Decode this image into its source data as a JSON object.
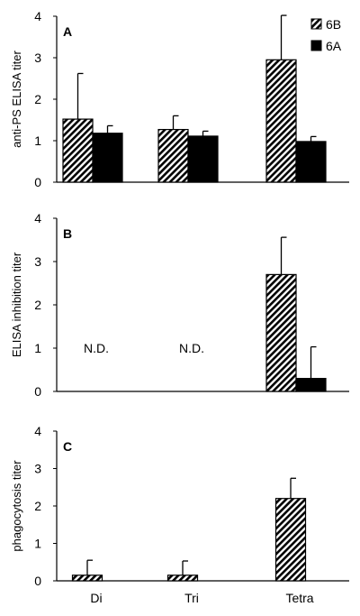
{
  "chart_data": [
    {
      "type": "bar",
      "panel": "A",
      "ylabel": "anti-PS ELISA titer",
      "ylim": [
        0,
        4
      ],
      "yticks": [
        "0",
        "1",
        "2",
        "3",
        "4"
      ],
      "categories": [
        "Di",
        "Tri",
        "Tetra"
      ],
      "series": [
        {
          "name": "6B",
          "values": [
            1.52,
            1.27,
            2.95
          ],
          "errors": [
            1.1,
            0.33,
            1.07
          ]
        },
        {
          "name": "6A",
          "values": [
            1.18,
            1.11,
            0.98
          ],
          "errors": [
            0.18,
            0.12,
            0.12
          ]
        }
      ],
      "legend": "top-right"
    },
    {
      "type": "bar",
      "panel": "B",
      "ylabel": "ELISA inhibition titer",
      "ylim": [
        0,
        4
      ],
      "yticks": [
        "0",
        "1",
        "2",
        "3",
        "4"
      ],
      "categories": [
        "Di",
        "Tri",
        "Tetra"
      ],
      "series": [
        {
          "values": [
            null,
            null,
            2.7
          ],
          "errors": [
            null,
            null,
            0.86
          ]
        },
        {
          "values": [
            null,
            null,
            0.3
          ],
          "errors": [
            null,
            null,
            0.73
          ]
        }
      ],
      "annotations": [
        "N.D.",
        "N.D."
      ]
    },
    {
      "type": "bar",
      "panel": "C",
      "ylabel": "phagocytosis titer",
      "ylim": [
        0,
        4
      ],
      "yticks": [
        "0",
        "1",
        "2",
        "3",
        "4"
      ],
      "categories": [
        "Di",
        "Tri",
        "Tetra"
      ],
      "series": [
        {
          "values": [
            0.15,
            0.15,
            2.2
          ],
          "errors": [
            0.4,
            0.38,
            0.54
          ]
        }
      ]
    }
  ],
  "colors": {
    "series_6A": "#000000",
    "series_6B_pattern": "diagonal-hatch",
    "axis": "#000000"
  }
}
